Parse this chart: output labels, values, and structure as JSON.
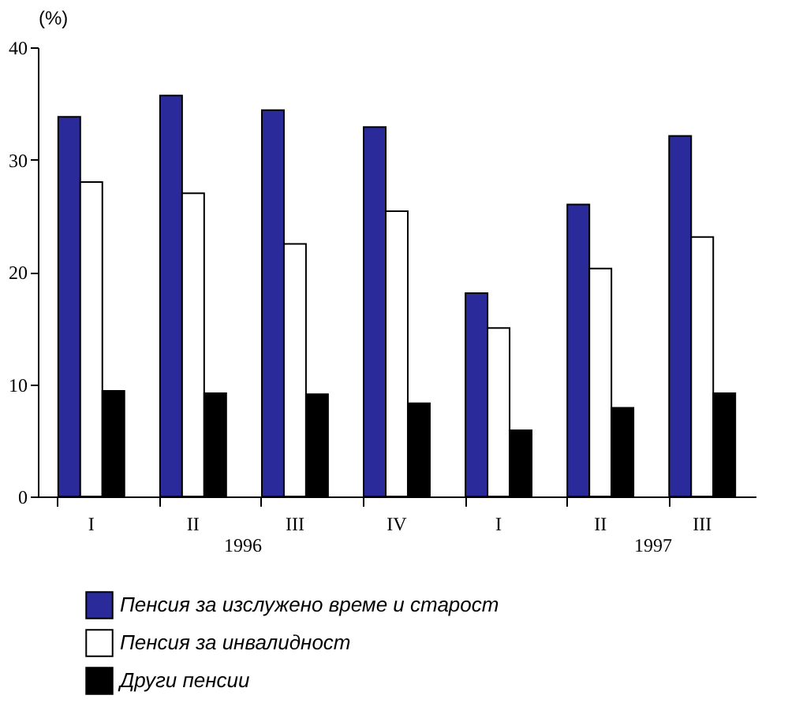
{
  "chart_data": {
    "type": "bar",
    "ylabel": "(%)",
    "categories": [
      "I",
      "II",
      "III",
      "IV",
      "I",
      "II",
      "III"
    ],
    "series": [
      {
        "name": "Пенсия за изслужено време и старост",
        "color": "#2a2a9a",
        "values": [
          33.8,
          35.7,
          34.4,
          32.9,
          18.1,
          26.0,
          32.1
        ]
      },
      {
        "name": "Пенсия за инвалидност",
        "color": "#ffffff",
        "values": [
          28.0,
          27.0,
          22.5,
          25.4,
          15.0,
          20.3,
          23.1
        ]
      },
      {
        "name": "Други пенсии",
        "color": "#000000",
        "values": [
          9.4,
          9.2,
          9.1,
          8.3,
          5.9,
          7.9,
          9.2
        ]
      }
    ],
    "annotations": [
      "1996",
      "1997"
    ],
    "ylim": [
      0,
      40
    ],
    "yticks": [
      0,
      10,
      20,
      30,
      40
    ],
    "grid": false,
    "legend": "bottom"
  }
}
